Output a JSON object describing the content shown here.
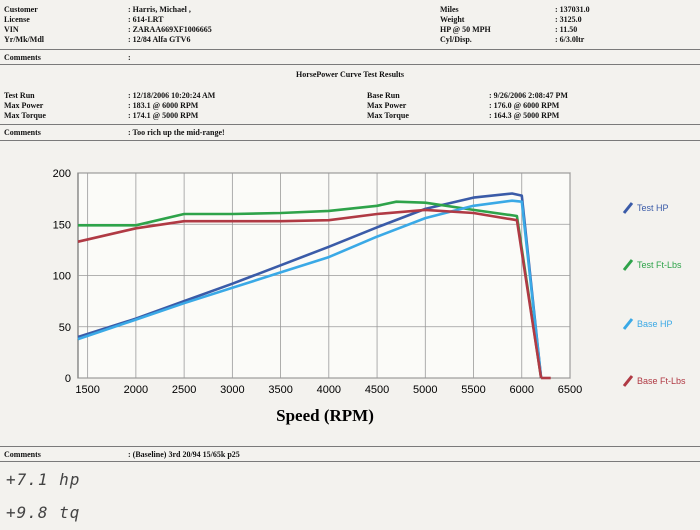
{
  "customer": {
    "customer_label": "Customer",
    "customer_value": ": Harris, Michael  ,",
    "license_label": "License",
    "license_value": ": 614-LRT",
    "vin_label": "VIN",
    "vin_value": ": ZARAA669XF1006665",
    "ymm_label": "Yr/Mk/Mdl",
    "ymm_value": ": 12/84 Alfa GTV6",
    "miles_label": "Miles",
    "miles_value": ": 137031.0",
    "weight_label": "Weight",
    "weight_value": ": 3125.0",
    "hp50_label": "HP @ 50 MPH",
    "hp50_value": ": 11.50",
    "cyl_label": "Cyl/Disp.",
    "cyl_value": ": 6/3.0ltr",
    "comments_label": "Comments",
    "comments_value": ":"
  },
  "report": {
    "title": "HorsePower Curve Test Results",
    "test_run_label": "Test Run",
    "test_run_value": ": 12/18/2006 10:20:24 AM",
    "max_power_label": "Max Power",
    "test_max_power_value": ": 183.1   @ 6000  RPM",
    "max_torque_label": "Max Torque",
    "test_max_torque_value": ": 174.1   @ 5000  RPM",
    "base_run_label": "Base Run",
    "base_run_value": ": 9/26/2006 2:08:47 PM",
    "base_max_power_value": ": 176.0   @ 6000  RPM",
    "base_max_torque_value": ": 164.3   @ 5000  RPM",
    "comments_label": "Comments",
    "comments_value": ": Too rich up the mid-range!"
  },
  "footer": {
    "comments_label": "Comments",
    "comments_value": ": (Baseline) 3rd 20/94 15/65k p25",
    "handwritten_1": "+7.1 hp",
    "handwritten_2": "+9.8 tq"
  },
  "chart_data": {
    "type": "line",
    "xlabel": "Speed (RPM)",
    "xlim": [
      1400,
      6500
    ],
    "ylim": [
      0,
      200
    ],
    "x_ticks": [
      1500,
      2000,
      2500,
      3000,
      3500,
      4000,
      4500,
      5000,
      5500,
      6000,
      6500
    ],
    "y_ticks": [
      0,
      50,
      100,
      150,
      200
    ],
    "grid": true,
    "legend_position": "right",
    "series": [
      {
        "name": "Test HP",
        "color": "#3a5ba8",
        "x": [
          1400,
          2000,
          2500,
          3000,
          3500,
          4000,
          4500,
          5000,
          5500,
          5900,
          6000,
          6200
        ],
        "y": [
          40,
          58,
          75,
          92,
          110,
          128,
          147,
          165,
          176,
          180,
          178,
          0
        ]
      },
      {
        "name": "Test Ft-Lbs",
        "color": "#2ea34a",
        "x": [
          1400,
          2000,
          2500,
          3000,
          3500,
          4000,
          4500,
          4700,
          5000,
          5500,
          5950,
          6200
        ],
        "y": [
          149,
          149,
          160,
          160,
          161,
          163,
          168,
          172,
          171,
          164,
          158,
          0
        ]
      },
      {
        "name": "Base HP",
        "color": "#3aa9e6",
        "x": [
          1400,
          2000,
          2500,
          3000,
          3500,
          4000,
          4500,
          5000,
          5500,
          5900,
          6000,
          6200
        ],
        "y": [
          38,
          57,
          73,
          88,
          103,
          118,
          138,
          156,
          168,
          173,
          172,
          0
        ]
      },
      {
        "name": "Base Ft-Lbs",
        "color": "#b03a44",
        "x": [
          1400,
          2000,
          2500,
          3000,
          3500,
          4000,
          4500,
          5000,
          5500,
          5950,
          6200
        ],
        "y": [
          133,
          146,
          153,
          153,
          153,
          154,
          160,
          164,
          161,
          154,
          0
        ]
      }
    ]
  }
}
